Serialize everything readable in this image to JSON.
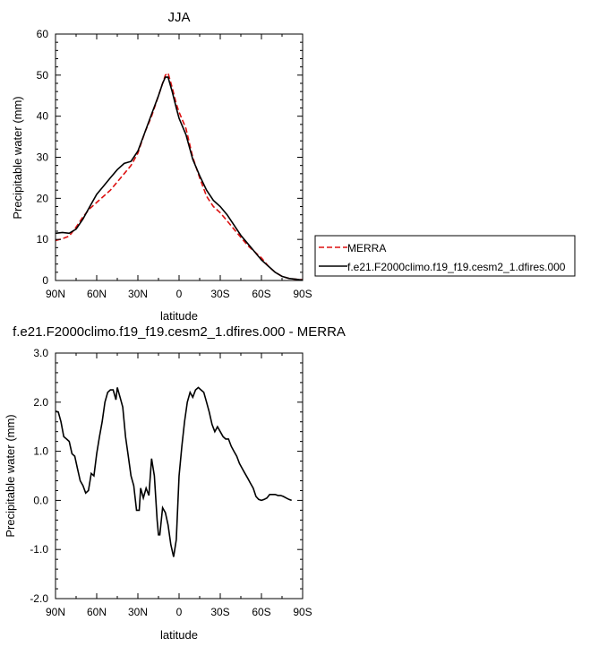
{
  "chart_data": [
    {
      "type": "line",
      "title": "JJA",
      "xlabel": "latitude",
      "ylabel": "Precipitable water (mm)",
      "xlim": [
        90,
        -90
      ],
      "ylim": [
        0,
        60
      ],
      "xticks": [
        {
          "v": 90,
          "label": "90N"
        },
        {
          "v": 60,
          "label": "60N"
        },
        {
          "v": 30,
          "label": "30N"
        },
        {
          "v": 0,
          "label": "0"
        },
        {
          "v": -30,
          "label": "30S"
        },
        {
          "v": -60,
          "label": "60S"
        },
        {
          "v": -90,
          "label": "90S"
        }
      ],
      "yticks": [
        {
          "v": 0,
          "label": "0"
        },
        {
          "v": 10,
          "label": "10"
        },
        {
          "v": 20,
          "label": "20"
        },
        {
          "v": 30,
          "label": "30"
        },
        {
          "v": 40,
          "label": "40"
        },
        {
          "v": 50,
          "label": "50"
        },
        {
          "v": 60,
          "label": "60"
        }
      ],
      "legend_position": "right",
      "series": [
        {
          "name": "MERRA",
          "color": "#dd1111",
          "dash": "dashed",
          "points": [
            [
              90,
              9.7
            ],
            [
              85,
              10.2
            ],
            [
              80,
              10.8
            ],
            [
              75,
              13
            ],
            [
              70,
              15.5
            ],
            [
              65,
              17.5
            ],
            [
              60,
              19
            ],
            [
              55,
              20.5
            ],
            [
              50,
              22
            ],
            [
              45,
              24
            ],
            [
              40,
              26
            ],
            [
              35,
              28
            ],
            [
              30,
              31
            ],
            [
              25,
              36
            ],
            [
              20,
              40
            ],
            [
              15,
              45
            ],
            [
              12,
              48
            ],
            [
              10,
              50
            ],
            [
              8,
              50.5
            ],
            [
              5,
              47
            ],
            [
              2,
              43
            ],
            [
              0,
              41
            ],
            [
              -5,
              37
            ],
            [
              -10,
              30
            ],
            [
              -15,
              25
            ],
            [
              -20,
              20.5
            ],
            [
              -25,
              18
            ],
            [
              -30,
              16.5
            ],
            [
              -35,
              14.5
            ],
            [
              -40,
              12.5
            ],
            [
              -45,
              10.5
            ],
            [
              -50,
              8.5
            ],
            [
              -55,
              7
            ],
            [
              -60,
              5.5
            ],
            [
              -65,
              3.5
            ],
            [
              -70,
              2
            ],
            [
              -75,
              1
            ],
            [
              -80,
              0.5
            ],
            [
              -85,
              0.3
            ],
            [
              -90,
              0.2
            ]
          ]
        },
        {
          "name": "f.e21.F2000climo.f19_f19.cesm2_1.dfires.000",
          "color": "#000000",
          "dash": "solid",
          "points": [
            [
              90,
              11.5
            ],
            [
              85,
              11.7
            ],
            [
              80,
              11.5
            ],
            [
              75,
              12.5
            ],
            [
              70,
              15
            ],
            [
              65,
              18
            ],
            [
              60,
              21
            ],
            [
              55,
              23
            ],
            [
              50,
              25
            ],
            [
              45,
              27
            ],
            [
              40,
              28.5
            ],
            [
              35,
              29
            ],
            [
              30,
              31.5
            ],
            [
              25,
              36
            ],
            [
              20,
              40.5
            ],
            [
              15,
              45
            ],
            [
              12,
              48
            ],
            [
              10,
              49.5
            ],
            [
              8,
              49.5
            ],
            [
              5,
              46
            ],
            [
              2,
              42
            ],
            [
              0,
              39.5
            ],
            [
              -5,
              35.5
            ],
            [
              -10,
              29.5
            ],
            [
              -15,
              25.5
            ],
            [
              -20,
              22
            ],
            [
              -25,
              19.5
            ],
            [
              -30,
              18
            ],
            [
              -35,
              16
            ],
            [
              -40,
              13.5
            ],
            [
              -45,
              11
            ],
            [
              -50,
              9
            ],
            [
              -55,
              7
            ],
            [
              -60,
              5
            ],
            [
              -65,
              3.5
            ],
            [
              -70,
              2
            ],
            [
              -75,
              1
            ],
            [
              -80,
              0.5
            ],
            [
              -85,
              0.3
            ],
            [
              -90,
              0.1
            ]
          ]
        }
      ]
    },
    {
      "type": "line",
      "title": "f.e21.F2000climo.f19_f19.cesm2_1.dfires.000 - MERRA",
      "xlabel": "latitude",
      "ylabel": "Precipitable water (mm)",
      "xlim": [
        90,
        -90
      ],
      "ylim": [
        -2,
        3
      ],
      "xticks": [
        {
          "v": 90,
          "label": "90N"
        },
        {
          "v": 60,
          "label": "60N"
        },
        {
          "v": 30,
          "label": "30N"
        },
        {
          "v": 0,
          "label": "0"
        },
        {
          "v": -30,
          "label": "30S"
        },
        {
          "v": -60,
          "label": "60S"
        },
        {
          "v": -90,
          "label": "90S"
        }
      ],
      "yticks": [
        {
          "v": -2,
          "label": "-2.0"
        },
        {
          "v": -1,
          "label": "-1.0"
        },
        {
          "v": 0,
          "label": "0.0"
        },
        {
          "v": 1,
          "label": "1.0"
        },
        {
          "v": 2,
          "label": "2.0"
        },
        {
          "v": 3,
          "label": "3.0"
        }
      ],
      "series": [
        {
          "color": "#000000",
          "dash": "solid",
          "points": [
            [
              90,
              1.82
            ],
            [
              88,
              1.8
            ],
            [
              86,
              1.6
            ],
            [
              84,
              1.3
            ],
            [
              82,
              1.25
            ],
            [
              80,
              1.2
            ],
            [
              78,
              0.95
            ],
            [
              76,
              0.9
            ],
            [
              74,
              0.65
            ],
            [
              72,
              0.4
            ],
            [
              70,
              0.3
            ],
            [
              68,
              0.15
            ],
            [
              66,
              0.2
            ],
            [
              64,
              0.55
            ],
            [
              62,
              0.5
            ],
            [
              60,
              0.95
            ],
            [
              58,
              1.3
            ],
            [
              56,
              1.6
            ],
            [
              54,
              2.0
            ],
            [
              52,
              2.2
            ],
            [
              50,
              2.25
            ],
            [
              48,
              2.25
            ],
            [
              46,
              2.05
            ],
            [
              45,
              2.3
            ],
            [
              43,
              2.1
            ],
            [
              41,
              1.9
            ],
            [
              39,
              1.3
            ],
            [
              37,
              0.9
            ],
            [
              35,
              0.5
            ],
            [
              33,
              0.3
            ],
            [
              31,
              -0.2
            ],
            [
              29,
              -0.2
            ],
            [
              28,
              0.25
            ],
            [
              26,
              0.05
            ],
            [
              24,
              0.25
            ],
            [
              22,
              0.1
            ],
            [
              20,
              0.85
            ],
            [
              18,
              0.5
            ],
            [
              16,
              -0.4
            ],
            [
              15,
              -0.7
            ],
            [
              14,
              -0.7
            ],
            [
              12,
              -0.15
            ],
            [
              10,
              -0.25
            ],
            [
              8,
              -0.5
            ],
            [
              6,
              -0.9
            ],
            [
              4,
              -1.15
            ],
            [
              2,
              -0.8
            ],
            [
              0,
              0.5
            ],
            [
              -2,
              1.1
            ],
            [
              -4,
              1.6
            ],
            [
              -6,
              2.0
            ],
            [
              -8,
              2.2
            ],
            [
              -10,
              2.1
            ],
            [
              -12,
              2.25
            ],
            [
              -14,
              2.3
            ],
            [
              -16,
              2.25
            ],
            [
              -18,
              2.2
            ],
            [
              -20,
              2.0
            ],
            [
              -22,
              1.8
            ],
            [
              -24,
              1.55
            ],
            [
              -26,
              1.4
            ],
            [
              -28,
              1.5
            ],
            [
              -30,
              1.4
            ],
            [
              -32,
              1.3
            ],
            [
              -34,
              1.25
            ],
            [
              -36,
              1.25
            ],
            [
              -38,
              1.1
            ],
            [
              -40,
              1.0
            ],
            [
              -42,
              0.9
            ],
            [
              -44,
              0.75
            ],
            [
              -46,
              0.65
            ],
            [
              -48,
              0.55
            ],
            [
              -50,
              0.45
            ],
            [
              -52,
              0.35
            ],
            [
              -54,
              0.25
            ],
            [
              -56,
              0.08
            ],
            [
              -58,
              0.02
            ],
            [
              -60,
              0.0
            ],
            [
              -62,
              0.02
            ],
            [
              -64,
              0.05
            ],
            [
              -66,
              0.12
            ],
            [
              -68,
              0.12
            ],
            [
              -70,
              0.12
            ],
            [
              -72,
              0.1
            ],
            [
              -74,
              0.1
            ],
            [
              -76,
              0.08
            ],
            [
              -78,
              0.05
            ],
            [
              -80,
              0.02
            ],
            [
              -82,
              0.0
            ]
          ]
        }
      ]
    }
  ]
}
